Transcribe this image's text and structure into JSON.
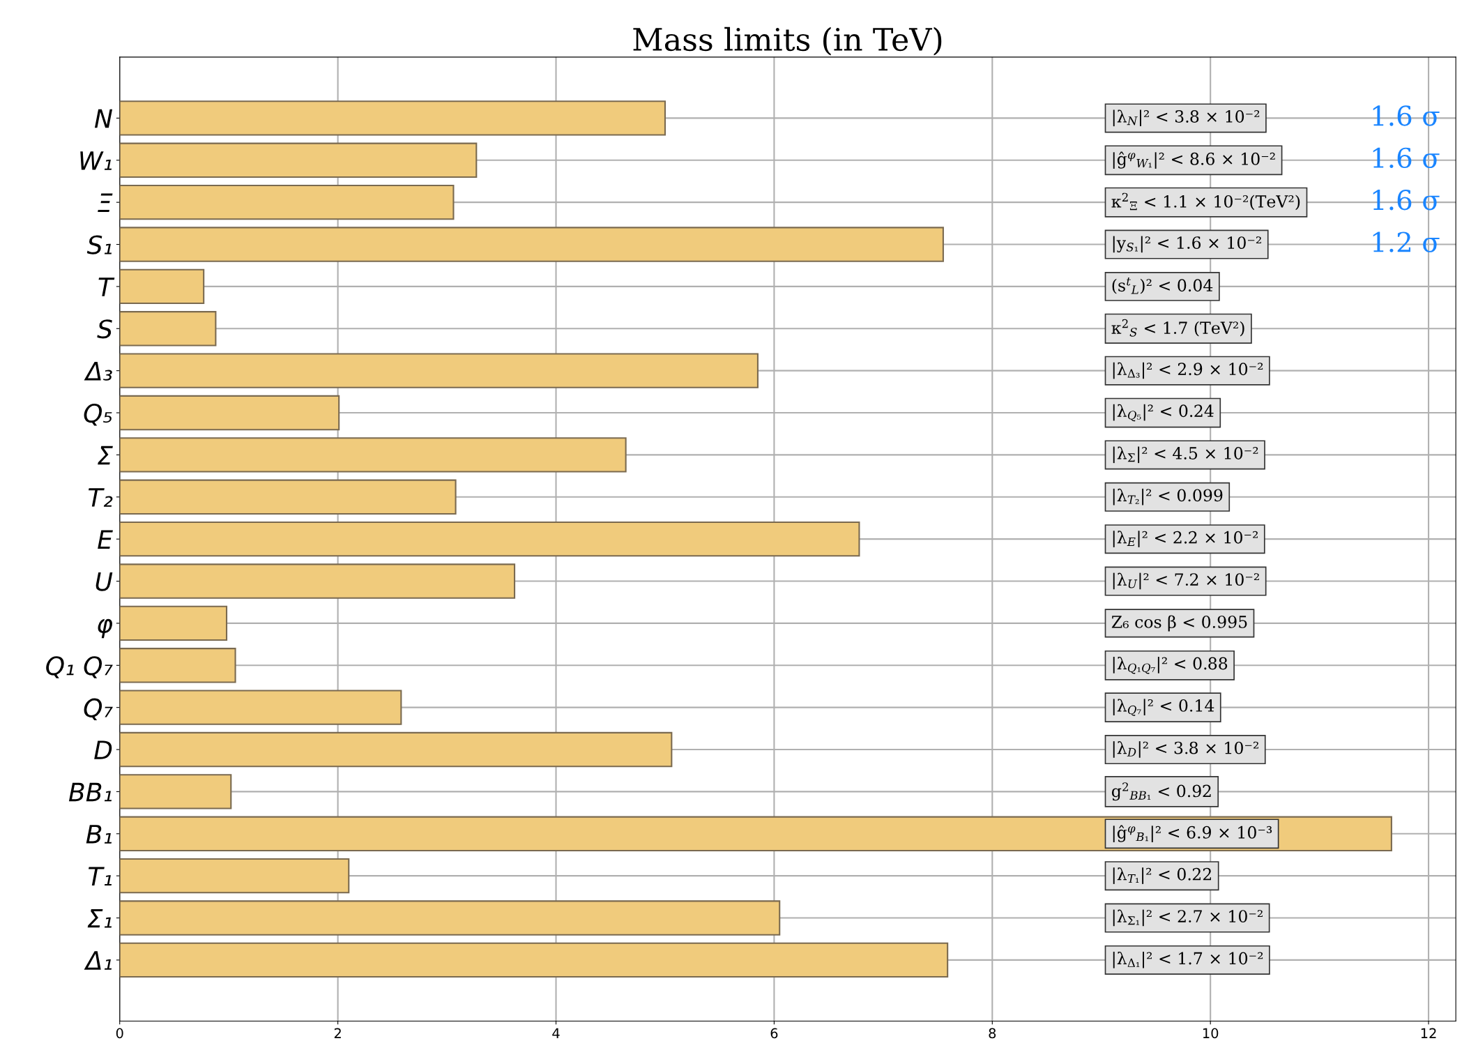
{
  "chart_data": {
    "type": "bar",
    "orientation": "horizontal",
    "title": "Mass limits (in TeV)",
    "categories": [
      "N",
      "W₁",
      "Ξ",
      "S₁",
      "T",
      "S",
      "Δ₃",
      "Q₅",
      "Σ",
      "T₂",
      "E",
      "U",
      "φ",
      "Q₁ Q₇",
      "Q₇",
      "D",
      "BB₁",
      "B₁",
      "T₁",
      "Σ₁",
      "Δ₁"
    ],
    "values": [
      5.0,
      3.27,
      3.06,
      7.55,
      0.77,
      0.88,
      5.85,
      2.01,
      4.64,
      3.08,
      6.78,
      3.62,
      0.98,
      1.06,
      2.58,
      5.06,
      1.02,
      11.66,
      2.1,
      6.05,
      7.59
    ],
    "color": "#f0cb7c",
    "xlim": [
      0,
      12.25
    ],
    "xticks": [
      0,
      2,
      4,
      6,
      8,
      10,
      12
    ],
    "grid": true,
    "annotations": [
      "|λ$_{N}$|² < 3.8 × 10⁻²",
      "|ĝ$^{φ}$$_{W₁}$|² < 8.6 × 10⁻²",
      "κ$^{2}$$_{Ξ}$ < 1.1 × 10⁻²(TeV²)",
      "|y$_{S₁}$|² < 1.6 × 10⁻²",
      "(s$^{t}$$_{L}$)² < 0.04",
      "κ$^{2}$$_{S}$ < 1.7 (TeV²)",
      "|λ$_{Δ₃}$|² < 2.9 × 10⁻²",
      "|λ$_{Q₅}$|² < 0.24",
      "|λ$_{Σ}$|² < 4.5 × 10⁻²",
      "|λ$_{T₂}$|² < 0.099",
      "|λ$_{E}$|² < 2.2 × 10⁻²",
      "|λ$_{U}$|² < 7.2 × 10⁻²",
      "Z₆ cos β < 0.995",
      "|λ$_{Q₁Q₇}$|² < 0.88",
      "|λ$_{Q₇}$|² < 0.14",
      "|λ$_{D}$|² < 3.8 × 10⁻²",
      "g$^{2}$$_{BB₁}$ < 0.92",
      "|ĝ$^{φ}$$_{B₁}$|² < 6.9 × 10⁻³",
      "|λ$_{T₁}$|² < 0.22",
      "|λ$_{Σ₁}$|² < 2.7 × 10⁻²",
      "|λ$_{Δ₁}$|² < 1.7 × 10⁻²",
      "1.6 σ",
      "1.6 σ",
      "1.6 σ",
      "1.2 σ"
    ]
  }
}
